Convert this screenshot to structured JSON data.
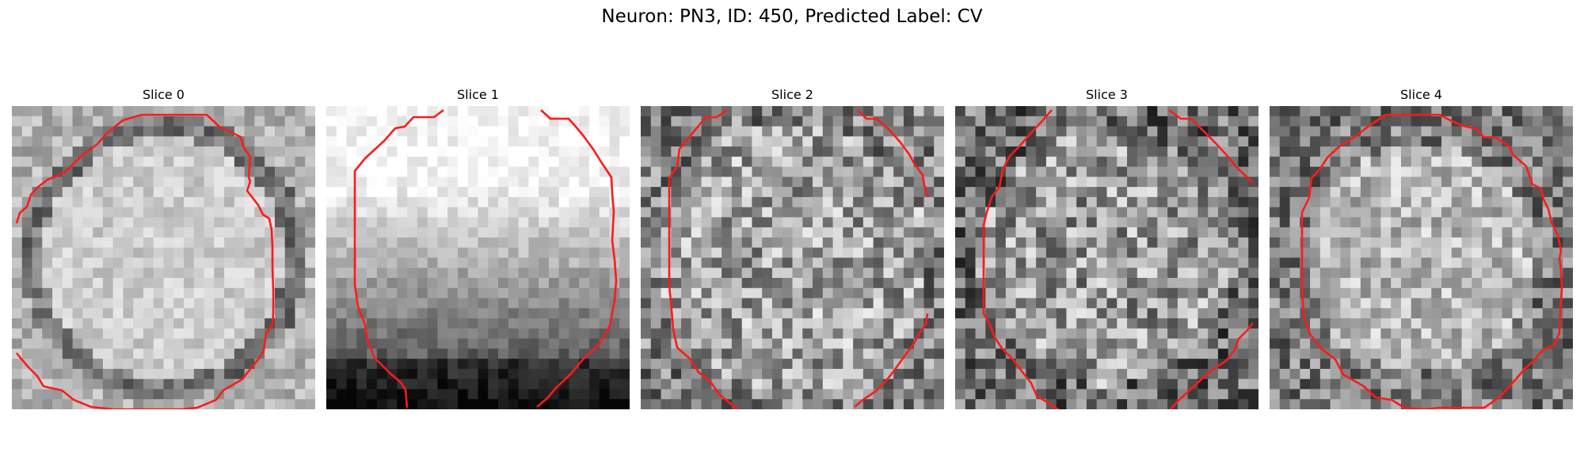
{
  "title": "Neuron: PN3, ID: 450, Predicted Label: CV",
  "colors": {
    "contour": "#ff1a1a",
    "background": "#ffffff"
  },
  "grid": {
    "cells": 30
  },
  "slices": [
    {
      "label": "Slice 0",
      "pattern": "bright-disc-dark-rim",
      "seed": 11
    },
    {
      "label": "Slice 1",
      "pattern": "bright-top-dark-bottom",
      "seed": 23
    },
    {
      "label": "Slice 2",
      "pattern": "noisy-mid",
      "seed": 37
    },
    {
      "label": "Slice 3",
      "pattern": "noisy-mid-dark-edges",
      "seed": 41
    },
    {
      "label": "Slice 4",
      "pattern": "noisy-disc-dark-rim",
      "seed": 53
    }
  ]
}
